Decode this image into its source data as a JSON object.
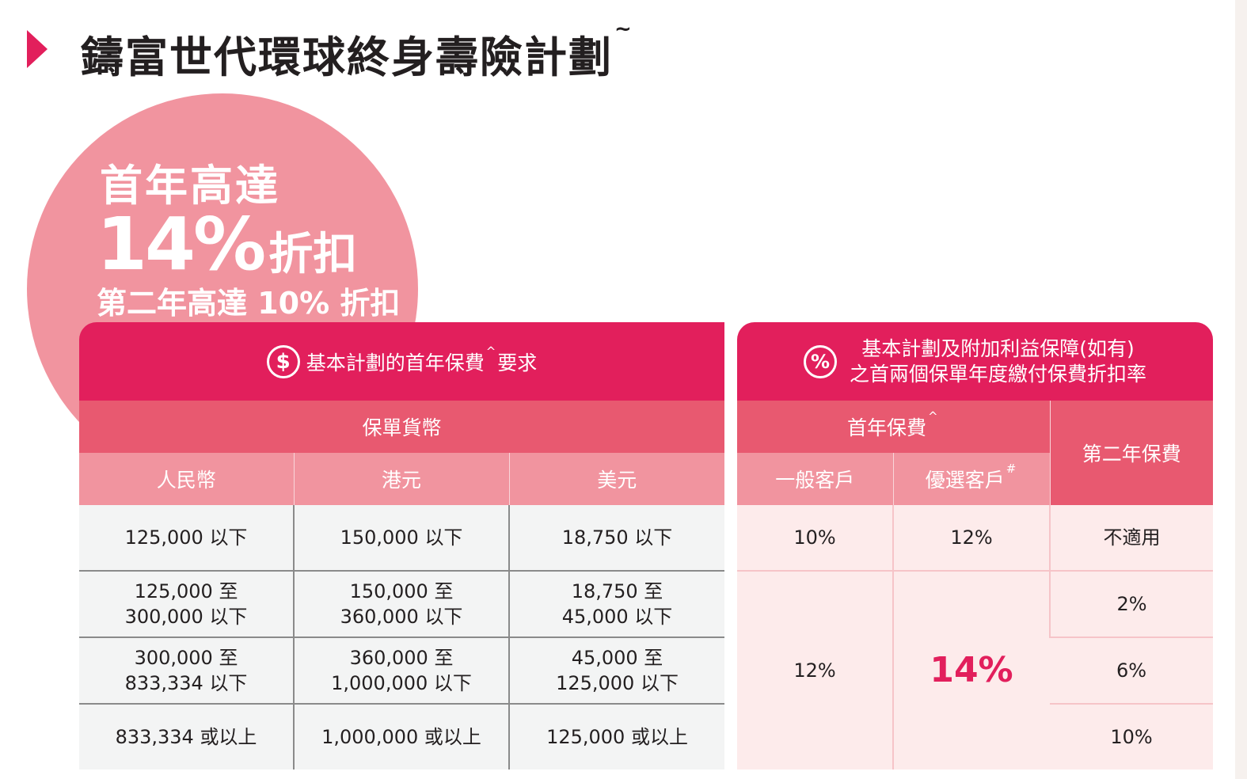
{
  "title": {
    "text": "鑄富世代環球終身壽險計劃",
    "mark": "~"
  },
  "promo": {
    "line1": "首年高達",
    "big_value": "14%",
    "big_suffix": "折扣",
    "line3": "第二年高達 10% 折扣"
  },
  "left_table": {
    "header_prefix": "基本計劃的首年保費",
    "header_mark": "^",
    "header_suffix": "要求",
    "subheader": "保單貨幣",
    "columns": [
      "人民幣",
      "港元",
      "美元"
    ],
    "rows": [
      [
        [
          "125,000 以下"
        ],
        [
          "150,000 以下"
        ],
        [
          "18,750 以下"
        ]
      ],
      [
        [
          "125,000 至",
          "300,000 以下"
        ],
        [
          "150,000 至",
          "360,000 以下"
        ],
        [
          "18,750 至",
          "45,000 以下"
        ]
      ],
      [
        [
          "300,000 至",
          "833,334 以下"
        ],
        [
          "360,000 至",
          "1,000,000 以下"
        ],
        [
          "45,000 至",
          "125,000 以下"
        ]
      ],
      [
        [
          "833,334 或以上"
        ],
        [
          "1,000,000 或以上"
        ],
        [
          "125,000 或以上"
        ]
      ]
    ]
  },
  "right_table": {
    "header_line1": "基本計劃及附加利益保障(如有)",
    "header_line2": "之首兩個保單年度繳付保費折扣率",
    "first_year_label": "首年保費",
    "first_year_mark": "^",
    "second_year_label": "第二年保費",
    "general_label": "一般客戶",
    "preferred_label": "優選客戶",
    "preferred_mark": "#",
    "row1": {
      "general": "10%",
      "preferred": "12%",
      "second": "不適用"
    },
    "general_rest": "12%",
    "preferred_rest": "14%",
    "second_rest": [
      "2%",
      "6%",
      "10%"
    ]
  },
  "colors": {
    "accent": "#e21f5c",
    "mid_pink": "#e85970",
    "light_pink": "#f1949f"
  },
  "icons": {
    "dollar": "$",
    "percent": "%"
  }
}
